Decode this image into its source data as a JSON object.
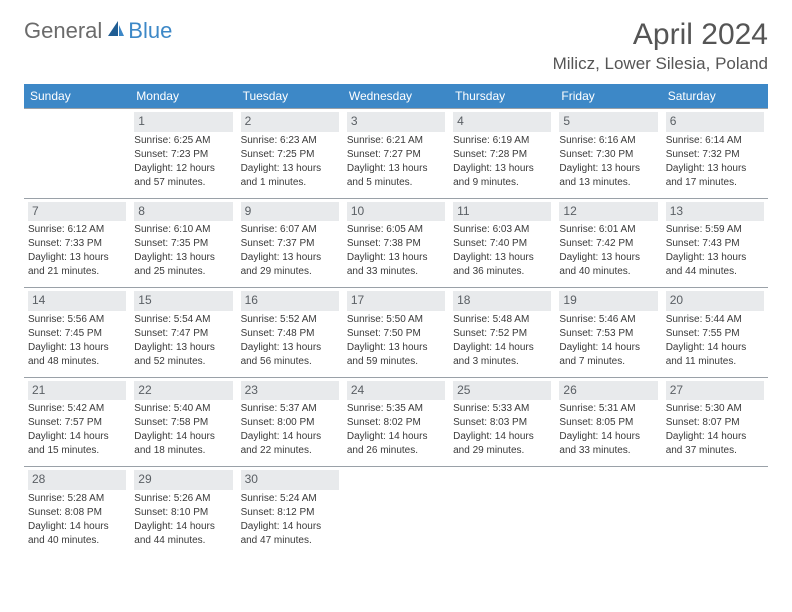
{
  "logo": {
    "part1": "General",
    "part2": "Blue"
  },
  "title": "April 2024",
  "location": "Milicz, Lower Silesia, Poland",
  "day_headers": [
    "Sunday",
    "Monday",
    "Tuesday",
    "Wednesday",
    "Thursday",
    "Friday",
    "Saturday"
  ],
  "colors": {
    "header_bg": "#3d88c7",
    "header_text": "#ffffff",
    "daynum_bg": "#e8eaec",
    "text": "#3a3a3a",
    "divider": "#9aa1a8"
  },
  "weeks": [
    [
      null,
      {
        "n": "1",
        "sr": "Sunrise: 6:25 AM",
        "ss": "Sunset: 7:23 PM",
        "d1": "Daylight: 12 hours",
        "d2": "and 57 minutes."
      },
      {
        "n": "2",
        "sr": "Sunrise: 6:23 AM",
        "ss": "Sunset: 7:25 PM",
        "d1": "Daylight: 13 hours",
        "d2": "and 1 minutes."
      },
      {
        "n": "3",
        "sr": "Sunrise: 6:21 AM",
        "ss": "Sunset: 7:27 PM",
        "d1": "Daylight: 13 hours",
        "d2": "and 5 minutes."
      },
      {
        "n": "4",
        "sr": "Sunrise: 6:19 AM",
        "ss": "Sunset: 7:28 PM",
        "d1": "Daylight: 13 hours",
        "d2": "and 9 minutes."
      },
      {
        "n": "5",
        "sr": "Sunrise: 6:16 AM",
        "ss": "Sunset: 7:30 PM",
        "d1": "Daylight: 13 hours",
        "d2": "and 13 minutes."
      },
      {
        "n": "6",
        "sr": "Sunrise: 6:14 AM",
        "ss": "Sunset: 7:32 PM",
        "d1": "Daylight: 13 hours",
        "d2": "and 17 minutes."
      }
    ],
    [
      {
        "n": "7",
        "sr": "Sunrise: 6:12 AM",
        "ss": "Sunset: 7:33 PM",
        "d1": "Daylight: 13 hours",
        "d2": "and 21 minutes."
      },
      {
        "n": "8",
        "sr": "Sunrise: 6:10 AM",
        "ss": "Sunset: 7:35 PM",
        "d1": "Daylight: 13 hours",
        "d2": "and 25 minutes."
      },
      {
        "n": "9",
        "sr": "Sunrise: 6:07 AM",
        "ss": "Sunset: 7:37 PM",
        "d1": "Daylight: 13 hours",
        "d2": "and 29 minutes."
      },
      {
        "n": "10",
        "sr": "Sunrise: 6:05 AM",
        "ss": "Sunset: 7:38 PM",
        "d1": "Daylight: 13 hours",
        "d2": "and 33 minutes."
      },
      {
        "n": "11",
        "sr": "Sunrise: 6:03 AM",
        "ss": "Sunset: 7:40 PM",
        "d1": "Daylight: 13 hours",
        "d2": "and 36 minutes."
      },
      {
        "n": "12",
        "sr": "Sunrise: 6:01 AM",
        "ss": "Sunset: 7:42 PM",
        "d1": "Daylight: 13 hours",
        "d2": "and 40 minutes."
      },
      {
        "n": "13",
        "sr": "Sunrise: 5:59 AM",
        "ss": "Sunset: 7:43 PM",
        "d1": "Daylight: 13 hours",
        "d2": "and 44 minutes."
      }
    ],
    [
      {
        "n": "14",
        "sr": "Sunrise: 5:56 AM",
        "ss": "Sunset: 7:45 PM",
        "d1": "Daylight: 13 hours",
        "d2": "and 48 minutes."
      },
      {
        "n": "15",
        "sr": "Sunrise: 5:54 AM",
        "ss": "Sunset: 7:47 PM",
        "d1": "Daylight: 13 hours",
        "d2": "and 52 minutes."
      },
      {
        "n": "16",
        "sr": "Sunrise: 5:52 AM",
        "ss": "Sunset: 7:48 PM",
        "d1": "Daylight: 13 hours",
        "d2": "and 56 minutes."
      },
      {
        "n": "17",
        "sr": "Sunrise: 5:50 AM",
        "ss": "Sunset: 7:50 PM",
        "d1": "Daylight: 13 hours",
        "d2": "and 59 minutes."
      },
      {
        "n": "18",
        "sr": "Sunrise: 5:48 AM",
        "ss": "Sunset: 7:52 PM",
        "d1": "Daylight: 14 hours",
        "d2": "and 3 minutes."
      },
      {
        "n": "19",
        "sr": "Sunrise: 5:46 AM",
        "ss": "Sunset: 7:53 PM",
        "d1": "Daylight: 14 hours",
        "d2": "and 7 minutes."
      },
      {
        "n": "20",
        "sr": "Sunrise: 5:44 AM",
        "ss": "Sunset: 7:55 PM",
        "d1": "Daylight: 14 hours",
        "d2": "and 11 minutes."
      }
    ],
    [
      {
        "n": "21",
        "sr": "Sunrise: 5:42 AM",
        "ss": "Sunset: 7:57 PM",
        "d1": "Daylight: 14 hours",
        "d2": "and 15 minutes."
      },
      {
        "n": "22",
        "sr": "Sunrise: 5:40 AM",
        "ss": "Sunset: 7:58 PM",
        "d1": "Daylight: 14 hours",
        "d2": "and 18 minutes."
      },
      {
        "n": "23",
        "sr": "Sunrise: 5:37 AM",
        "ss": "Sunset: 8:00 PM",
        "d1": "Daylight: 14 hours",
        "d2": "and 22 minutes."
      },
      {
        "n": "24",
        "sr": "Sunrise: 5:35 AM",
        "ss": "Sunset: 8:02 PM",
        "d1": "Daylight: 14 hours",
        "d2": "and 26 minutes."
      },
      {
        "n": "25",
        "sr": "Sunrise: 5:33 AM",
        "ss": "Sunset: 8:03 PM",
        "d1": "Daylight: 14 hours",
        "d2": "and 29 minutes."
      },
      {
        "n": "26",
        "sr": "Sunrise: 5:31 AM",
        "ss": "Sunset: 8:05 PM",
        "d1": "Daylight: 14 hours",
        "d2": "and 33 minutes."
      },
      {
        "n": "27",
        "sr": "Sunrise: 5:30 AM",
        "ss": "Sunset: 8:07 PM",
        "d1": "Daylight: 14 hours",
        "d2": "and 37 minutes."
      }
    ],
    [
      {
        "n": "28",
        "sr": "Sunrise: 5:28 AM",
        "ss": "Sunset: 8:08 PM",
        "d1": "Daylight: 14 hours",
        "d2": "and 40 minutes."
      },
      {
        "n": "29",
        "sr": "Sunrise: 5:26 AM",
        "ss": "Sunset: 8:10 PM",
        "d1": "Daylight: 14 hours",
        "d2": "and 44 minutes."
      },
      {
        "n": "30",
        "sr": "Sunrise: 5:24 AM",
        "ss": "Sunset: 8:12 PM",
        "d1": "Daylight: 14 hours",
        "d2": "and 47 minutes."
      },
      null,
      null,
      null,
      null
    ]
  ]
}
